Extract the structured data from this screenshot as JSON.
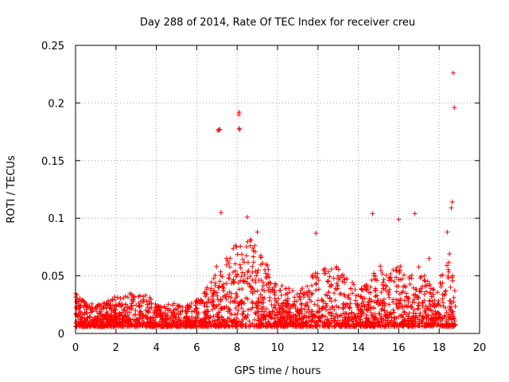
{
  "chart_data": {
    "type": "scatter",
    "title": "Day 288 of 2014, Rate Of TEC Index for receiver creu",
    "xlabel": "GPS time / hours",
    "ylabel": "ROTI / TECUs",
    "xlim": [
      0,
      20
    ],
    "ylim": [
      0,
      0.25
    ],
    "xticks": [
      0,
      2,
      4,
      6,
      8,
      10,
      12,
      14,
      16,
      18,
      20
    ],
    "yticks": [
      0,
      0.05,
      0.1,
      0.15,
      0.2,
      0.25
    ],
    "xtick_labels": [
      "0",
      "2",
      "4",
      "6",
      "8",
      "10",
      "12",
      "14",
      "16",
      "18",
      "20"
    ],
    "ytick_labels": [
      "0",
      "0.05",
      "0.1",
      "0.15",
      "0.2",
      "0.25"
    ],
    "grid": true,
    "marker": "+",
    "color": "#ff0000",
    "series": [
      {
        "name": "ROTI",
        "envelope_x": [
          0,
          0.5,
          1,
          1.5,
          2,
          2.5,
          3,
          3.5,
          4,
          4.5,
          5,
          5.5,
          6,
          6.5,
          7,
          7.5,
          8,
          8.5,
          9,
          9.5,
          10,
          10.5,
          11,
          11.5,
          12,
          12.5,
          13,
          13.5,
          14,
          14.5,
          15,
          15.5,
          16,
          16.5,
          17,
          17.5,
          18,
          18.5,
          18.8
        ],
        "envelope_y": [
          0.035,
          0.028,
          0.025,
          0.03,
          0.032,
          0.033,
          0.038,
          0.035,
          0.025,
          0.026,
          0.028,
          0.025,
          0.03,
          0.04,
          0.06,
          0.07,
          0.08,
          0.085,
          0.075,
          0.06,
          0.045,
          0.04,
          0.035,
          0.045,
          0.06,
          0.055,
          0.06,
          0.05,
          0.04,
          0.045,
          0.06,
          0.055,
          0.06,
          0.05,
          0.06,
          0.045,
          0.05,
          0.07,
          0.04
        ],
        "spikes": [
          {
            "x": 7.1,
            "y": 0.177
          },
          {
            "x": 7.05,
            "y": 0.176
          },
          {
            "x": 7.15,
            "y": 0.177
          },
          {
            "x": 8.1,
            "y": 0.192
          },
          {
            "x": 8.08,
            "y": 0.19
          },
          {
            "x": 8.1,
            "y": 0.178
          },
          {
            "x": 8.12,
            "y": 0.177
          },
          {
            "x": 18.7,
            "y": 0.226
          },
          {
            "x": 18.75,
            "y": 0.196
          },
          {
            "x": 18.65,
            "y": 0.114
          },
          {
            "x": 18.6,
            "y": 0.109
          },
          {
            "x": 7.2,
            "y": 0.105
          },
          {
            "x": 8.5,
            "y": 0.101
          },
          {
            "x": 14.7,
            "y": 0.104
          },
          {
            "x": 16.0,
            "y": 0.099
          },
          {
            "x": 16.8,
            "y": 0.104
          },
          {
            "x": 9.0,
            "y": 0.088
          },
          {
            "x": 11.9,
            "y": 0.087
          },
          {
            "x": 18.4,
            "y": 0.088
          },
          {
            "x": 17.5,
            "y": 0.065
          }
        ]
      }
    ]
  }
}
